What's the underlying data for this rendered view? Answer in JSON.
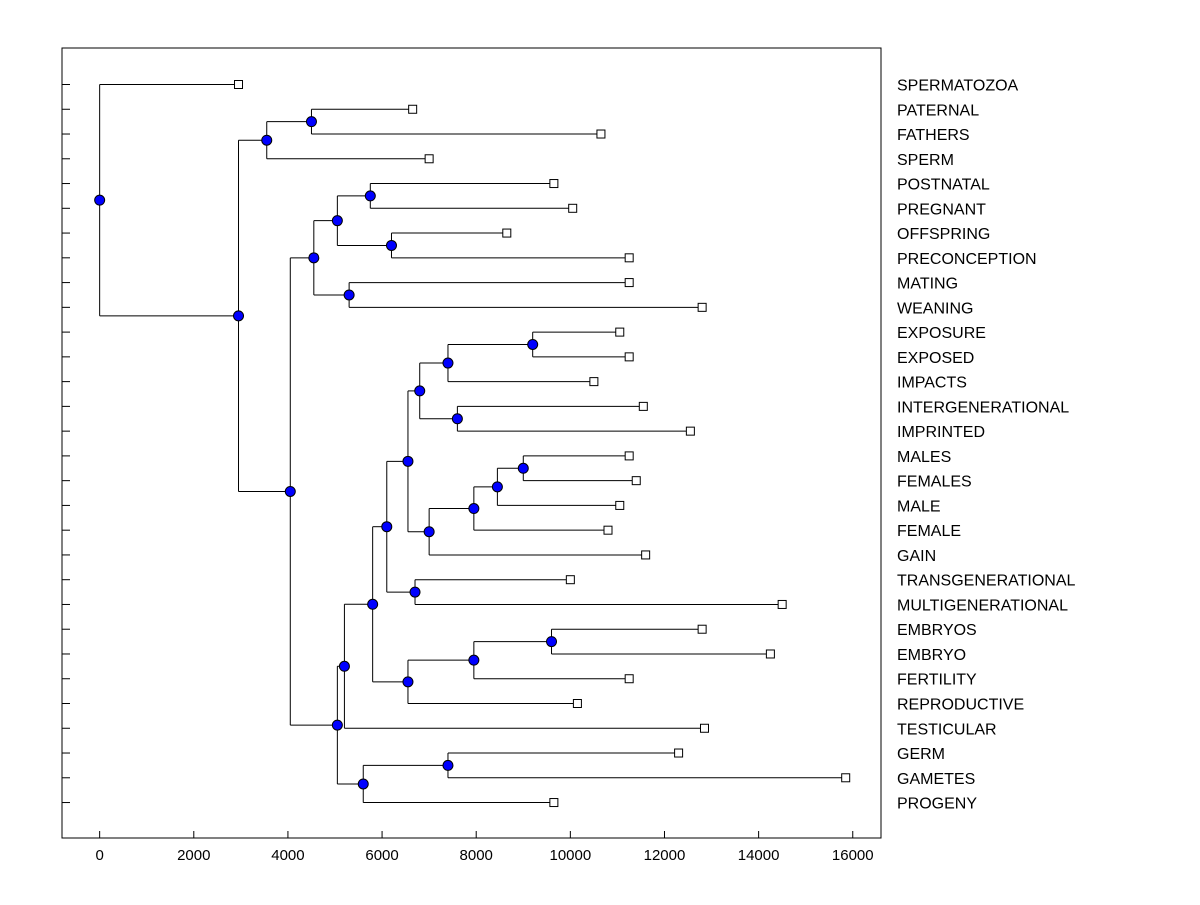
{
  "chart_data": {
    "type": "dendrogram",
    "title": "",
    "xlabel": "",
    "ylabel": "",
    "xlim": [
      -800,
      16600
    ],
    "xticks": [
      0,
      2000,
      4000,
      6000,
      8000,
      10000,
      12000,
      14000,
      16000
    ],
    "xtick_labels": [
      "0",
      "2000",
      "4000",
      "6000",
      "8000",
      "10000",
      "12000",
      "14000",
      "16000"
    ],
    "colors": {
      "node": "#0000ff",
      "line": "#000000",
      "leaf_fill": "#ffffff"
    },
    "leaves": [
      {
        "label": "SPERMATOZOA",
        "x": 2950
      },
      {
        "label": "PATERNAL",
        "x": 6650
      },
      {
        "label": "FATHERS",
        "x": 10650
      },
      {
        "label": "SPERM",
        "x": 7000
      },
      {
        "label": "POSTNATAL",
        "x": 9650
      },
      {
        "label": "PREGNANT",
        "x": 10050
      },
      {
        "label": "OFFSPRING",
        "x": 8650
      },
      {
        "label": "PRECONCEPTION",
        "x": 11250
      },
      {
        "label": "MATING",
        "x": 11250
      },
      {
        "label": "WEANING",
        "x": 12800
      },
      {
        "label": "EXPOSURE",
        "x": 11050
      },
      {
        "label": "EXPOSED",
        "x": 11250
      },
      {
        "label": "IMPACTS",
        "x": 10500
      },
      {
        "label": "INTERGENERATIONAL",
        "x": 11550
      },
      {
        "label": "IMPRINTED",
        "x": 12550
      },
      {
        "label": "MALES",
        "x": 11250
      },
      {
        "label": "FEMALES",
        "x": 11400
      },
      {
        "label": "MALE",
        "x": 11050
      },
      {
        "label": "FEMALE",
        "x": 10800
      },
      {
        "label": "GAIN",
        "x": 11600
      },
      {
        "label": "TRANSGENERATIONAL",
        "x": 10000
      },
      {
        "label": "MULTIGENERATIONAL",
        "x": 14500
      },
      {
        "label": "EMBRYOS",
        "x": 12800
      },
      {
        "label": "EMBRYO",
        "x": 14250
      },
      {
        "label": "FERTILITY",
        "x": 11250
      },
      {
        "label": "REPRODUCTIVE",
        "x": 10150
      },
      {
        "label": "TESTICULAR",
        "x": 12850
      },
      {
        "label": "GERM",
        "x": 12300
      },
      {
        "label": "GAMETES",
        "x": 15850
      },
      {
        "label": "PROGENY",
        "x": 9650
      }
    ],
    "merges": [
      {
        "id": "n_pat_fat",
        "x": 4500,
        "children": [
          "L1",
          "L2"
        ]
      },
      {
        "id": "n_sperm_grp",
        "x": 3550,
        "children": [
          "n_pat_fat",
          "L3"
        ]
      },
      {
        "id": "n_post_preg",
        "x": 5750,
        "children": [
          "L4",
          "L5"
        ]
      },
      {
        "id": "n_off_prec",
        "x": 6200,
        "children": [
          "L6",
          "L7"
        ]
      },
      {
        "id": "n_preg_grp",
        "x": 5050,
        "children": [
          "n_post_preg",
          "n_off_prec"
        ]
      },
      {
        "id": "n_mat_wean",
        "x": 5300,
        "children": [
          "L8",
          "L9"
        ]
      },
      {
        "id": "n_pregnancy",
        "x": 4550,
        "children": [
          "n_preg_grp",
          "n_mat_wean"
        ]
      },
      {
        "id": "n_expo",
        "x": 9200,
        "children": [
          "L10",
          "L11"
        ]
      },
      {
        "id": "n_expo_imp",
        "x": 7400,
        "children": [
          "n_expo",
          "L12"
        ]
      },
      {
        "id": "n_inter_impr",
        "x": 7600,
        "children": [
          "L13",
          "L14"
        ]
      },
      {
        "id": "n_exposure_grp",
        "x": 6800,
        "children": [
          "n_expo_imp",
          "n_inter_impr"
        ]
      },
      {
        "id": "n_males_fem",
        "x": 9000,
        "children": [
          "L15",
          "L16"
        ]
      },
      {
        "id": "n_sex3",
        "x": 8450,
        "children": [
          "n_males_fem",
          "L17"
        ]
      },
      {
        "id": "n_sex4",
        "x": 7950,
        "children": [
          "n_sex3",
          "L18"
        ]
      },
      {
        "id": "n_sex_gain",
        "x": 7000,
        "children": [
          "n_sex4",
          "L19"
        ]
      },
      {
        "id": "n_exp_sex",
        "x": 6550,
        "children": [
          "n_exposure_grp",
          "n_sex_gain"
        ]
      },
      {
        "id": "n_trans_multi",
        "x": 6700,
        "children": [
          "L20",
          "L21"
        ]
      },
      {
        "id": "n_gen_grp",
        "x": 6100,
        "children": [
          "n_exp_sex",
          "n_trans_multi"
        ]
      },
      {
        "id": "n_emb",
        "x": 9600,
        "children": [
          "L22",
          "L23"
        ]
      },
      {
        "id": "n_emb_fert",
        "x": 7950,
        "children": [
          "n_emb",
          "L24"
        ]
      },
      {
        "id": "n_repro",
        "x": 6550,
        "children": [
          "n_emb_fert",
          "L25"
        ]
      },
      {
        "id": "n_gen_repro",
        "x": 5800,
        "children": [
          "n_gen_grp",
          "n_repro"
        ]
      },
      {
        "id": "n_with_test",
        "x": 5200,
        "children": [
          "n_gen_repro",
          "L26"
        ]
      },
      {
        "id": "n_germ_gam",
        "x": 7400,
        "children": [
          "L27",
          "L28"
        ]
      },
      {
        "id": "n_gam_prog",
        "x": 5600,
        "children": [
          "n_germ_gam",
          "L29"
        ]
      },
      {
        "id": "n_lower",
        "x": 5050,
        "children": [
          "n_with_test",
          "n_gam_prog"
        ]
      },
      {
        "id": "n_mid",
        "x": 4050,
        "children": [
          "n_pregnancy",
          "n_lower"
        ]
      },
      {
        "id": "n_upper",
        "x": 2950,
        "children": [
          "n_sperm_grp",
          "n_mid"
        ]
      },
      {
        "id": "n_root",
        "x": 0,
        "children": [
          "L0",
          "n_upper"
        ]
      }
    ]
  }
}
